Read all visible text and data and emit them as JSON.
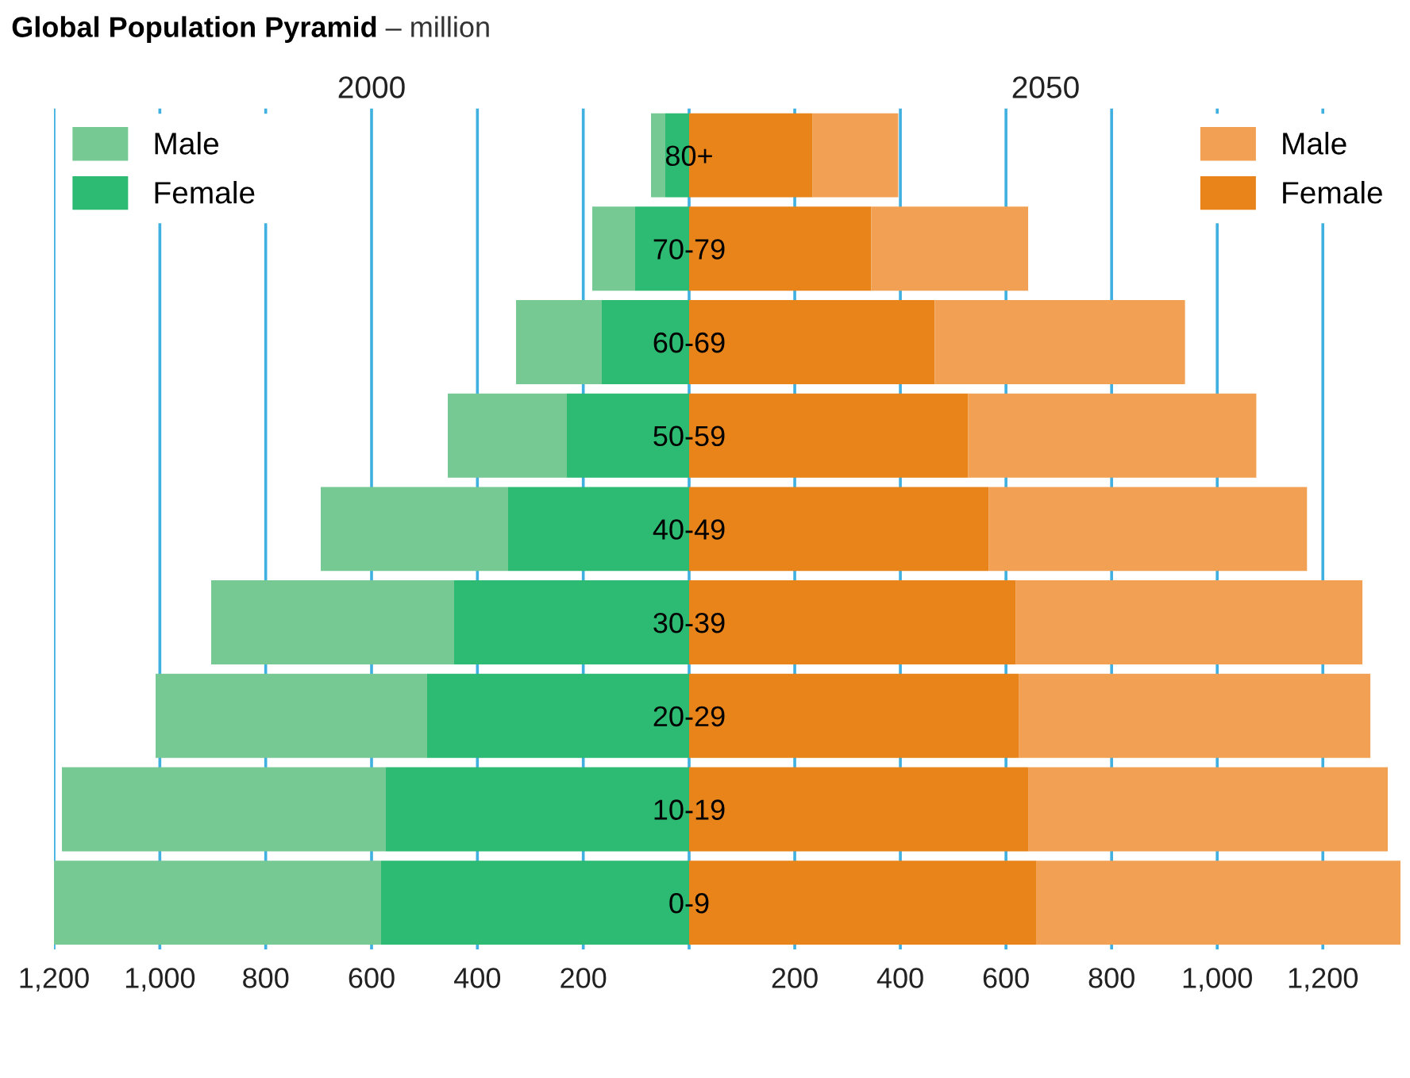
{
  "chart_data": [
    {
      "type": "bar",
      "orientation": "horizontal",
      "stacked": true,
      "title": "Global Population Pyramid",
      "subtitle": "– million",
      "x2label": "2000",
      "categories": [
        null,
        null,
        null,
        null,
        null,
        null,
        null,
        null,
        null
      ],
      "series": [
        {
          "name": "Female",
          "color": "#2dba72",
          "values": [
            45,
            102,
            165,
            231,
            342,
            444,
            495,
            573,
            582
          ]
        },
        {
          "name": "Male",
          "color": "#77c994",
          "values": [
            27,
            81,
            162,
            225,
            354,
            459,
            513,
            612,
            618
          ]
        }
      ],
      "xlim": [
        1200,
        0
      ],
      "xticks": [
        {
          "value": 1200,
          "label": "1,200"
        },
        {
          "value": 1000,
          "label": "1,000"
        },
        800,
        600,
        400,
        200,
        {
          "value": 0,
          "label": null
        }
      ],
      "grid": "x",
      "legend": "top left",
      "tick_labels": "x"
    },
    {
      "type": "bar",
      "orientation": "horizontal",
      "stacked": true,
      "x2label": "2050",
      "categories": [
        "80+",
        "70-79",
        "60-69",
        "50-59",
        "40-49",
        "30-39",
        "20-29",
        "10-19",
        "0-9"
      ],
      "series": [
        {
          "name": "Female",
          "color": "#e8841a",
          "values": [
            234,
            345,
            465,
            528,
            567,
            618,
            624,
            642,
            657
          ]
        },
        {
          "name": "Male",
          "color": "#f2a154",
          "values": [
            162,
            297,
            474,
            546,
            603,
            657,
            666,
            681,
            690
          ]
        }
      ],
      "xlim": [
        0,
        1350
      ],
      "xticks": [
        {
          "value": 0,
          "label": null
        },
        200,
        400,
        600,
        800,
        {
          "value": 1000,
          "label": "1,000"
        },
        {
          "value": 1200,
          "label": "1,200"
        }
      ],
      "grid": "x",
      "legend": "top right"
    }
  ]
}
